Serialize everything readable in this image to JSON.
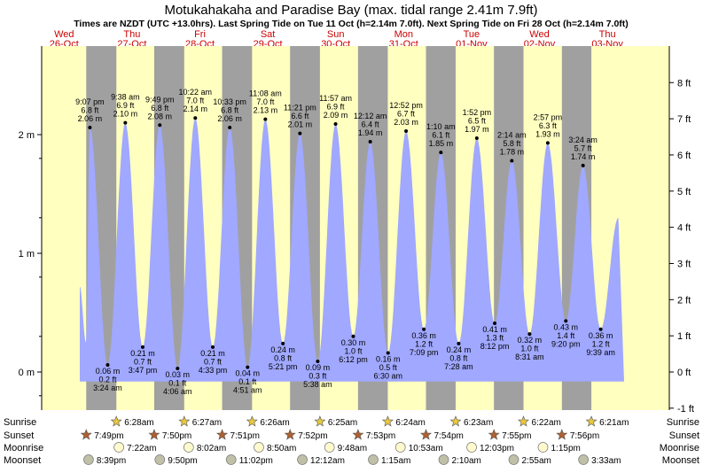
{
  "title": "Motukahakaha and Paradise Bay (max. tidal range 2.41m 7.9ft)",
  "subtitle": "Times are NZDT (UTC +13.0hrs). Last Spring Tide on Tue 11 Oct (h=2.14m 7.0ft). Next Spring Tide on Fri 28 Oct (h=2.14m 7.0ft)",
  "colors": {
    "day": "#ffffc0",
    "night": "#a0a0a0",
    "tide": "#a0a8ff",
    "daylabel": "#cc0000"
  },
  "days": [
    {
      "dow": "Wed",
      "date": "26-Oct"
    },
    {
      "dow": "Thu",
      "date": "27-Oct"
    },
    {
      "dow": "Fri",
      "date": "28-Oct"
    },
    {
      "dow": "Sat",
      "date": "29-Oct"
    },
    {
      "dow": "Sun",
      "date": "30-Oct"
    },
    {
      "dow": "Mon",
      "date": "31-Oct"
    },
    {
      "dow": "Tue",
      "date": "01-Nov"
    },
    {
      "dow": "Wed",
      "date": "02-Nov"
    },
    {
      "dow": "Thu",
      "date": "03-Nov"
    }
  ],
  "chart_data": {
    "type": "area",
    "title": "Motukahakaha and Paradise Bay (max. tidal range 2.41m 7.9ft)",
    "y_left_unit": "m",
    "y_right_unit": "ft",
    "ylim_m": [
      -0.3,
      2.8
    ],
    "left_ticks": [
      "0 m",
      "1 m",
      "2 m"
    ],
    "right_ticks": [
      "-1 ft",
      "0 ft",
      "1 ft",
      "2 ft",
      "3 ft",
      "4 ft",
      "5 ft",
      "6 ft",
      "7 ft",
      "8 ft"
    ],
    "extremes": [
      {
        "type": "high",
        "time": "9:07 pm",
        "ft": "6.8 ft",
        "m": "2.06 m",
        "day": 0,
        "h": 21.117,
        "v": 2.06
      },
      {
        "type": "low",
        "time": "3:24 am",
        "ft": "0.2 ft",
        "m": "0.06 m",
        "day": 1,
        "h": 3.4,
        "v": 0.06
      },
      {
        "type": "high",
        "time": "9:38 am",
        "ft": "6.9 ft",
        "m": "2.10 m",
        "day": 1,
        "h": 9.633,
        "v": 2.1
      },
      {
        "type": "low",
        "time": "3:47 pm",
        "ft": "0.7 ft",
        "m": "0.21 m",
        "day": 1,
        "h": 15.783,
        "v": 0.21
      },
      {
        "type": "high",
        "time": "9:49 pm",
        "ft": "6.8 ft",
        "m": "2.08 m",
        "day": 1,
        "h": 21.817,
        "v": 2.08
      },
      {
        "type": "low",
        "time": "4:06 am",
        "ft": "0.1 ft",
        "m": "0.03 m",
        "day": 2,
        "h": 4.1,
        "v": 0.03
      },
      {
        "type": "high",
        "time": "10:22 am",
        "ft": "7.0 ft",
        "m": "2.14 m",
        "day": 2,
        "h": 10.367,
        "v": 2.14
      },
      {
        "type": "low",
        "time": "4:33 pm",
        "ft": "0.7 ft",
        "m": "0.21 m",
        "day": 2,
        "h": 16.55,
        "v": 0.21
      },
      {
        "type": "high",
        "time": "10:33 pm",
        "ft": "6.8 ft",
        "m": "2.06 m",
        "day": 2,
        "h": 22.55,
        "v": 2.06
      },
      {
        "type": "low",
        "time": "4:51 am",
        "ft": "0.1 ft",
        "m": "0.04 m",
        "day": 3,
        "h": 4.85,
        "v": 0.04
      },
      {
        "type": "high",
        "time": "11:08 am",
        "ft": "7.0 ft",
        "m": "2.13 m",
        "day": 3,
        "h": 11.133,
        "v": 2.13
      },
      {
        "type": "low",
        "time": "5:21 pm",
        "ft": "0.8 ft",
        "m": "0.24 m",
        "day": 3,
        "h": 17.35,
        "v": 0.24
      },
      {
        "type": "high",
        "time": "11:21 pm",
        "ft": "6.6 ft",
        "m": "2.01 m",
        "day": 3,
        "h": 23.35,
        "v": 2.01
      },
      {
        "type": "low",
        "time": "5:38 am",
        "ft": "0.3 ft",
        "m": "0.09 m",
        "day": 4,
        "h": 5.633,
        "v": 0.09
      },
      {
        "type": "high",
        "time": "11:57 am",
        "ft": "6.9 ft",
        "m": "2.09 m",
        "day": 4,
        "h": 11.95,
        "v": 2.09
      },
      {
        "type": "low",
        "time": "6:12 pm",
        "ft": "1.0 ft",
        "m": "0.30 m",
        "day": 4,
        "h": 18.2,
        "v": 0.3
      },
      {
        "type": "high",
        "time": "12:12 am",
        "ft": "6.4 ft",
        "m": "1.94 m",
        "day": 5,
        "h": 0.2,
        "v": 1.94
      },
      {
        "type": "low",
        "time": "6:30 am",
        "ft": "0.5 ft",
        "m": "0.16 m",
        "day": 5,
        "h": 6.5,
        "v": 0.16
      },
      {
        "type": "high",
        "time": "12:52 pm",
        "ft": "6.7 ft",
        "m": "2.03 m",
        "day": 5,
        "h": 12.867,
        "v": 2.03
      },
      {
        "type": "low",
        "time": "7:09 pm",
        "ft": "1.2 ft",
        "m": "0.36 m",
        "day": 5,
        "h": 19.15,
        "v": 0.36
      },
      {
        "type": "high",
        "time": "1:10 am",
        "ft": "6.1 ft",
        "m": "1.85 m",
        "day": 6,
        "h": 1.167,
        "v": 1.85
      },
      {
        "type": "low",
        "time": "7:28 am",
        "ft": "0.8 ft",
        "m": "0.24 m",
        "day": 6,
        "h": 7.467,
        "v": 0.24
      },
      {
        "type": "high",
        "time": "1:52 pm",
        "ft": "6.5 ft",
        "m": "1.97 m",
        "day": 6,
        "h": 13.867,
        "v": 1.97
      },
      {
        "type": "low",
        "time": "8:12 pm",
        "ft": "1.3 ft",
        "m": "0.41 m",
        "day": 6,
        "h": 20.2,
        "v": 0.41
      },
      {
        "type": "high",
        "time": "2:14 am",
        "ft": "5.8 ft",
        "m": "1.78 m",
        "day": 7,
        "h": 2.233,
        "v": 1.78
      },
      {
        "type": "low",
        "time": "8:31 am",
        "ft": "1.0 ft",
        "m": "0.32 m",
        "day": 7,
        "h": 8.517,
        "v": 0.32
      },
      {
        "type": "high",
        "time": "2:57 pm",
        "ft": "6.3 ft",
        "m": "1.93 m",
        "day": 7,
        "h": 14.95,
        "v": 1.93
      },
      {
        "type": "low",
        "time": "9:20 pm",
        "ft": "1.4 ft",
        "m": "0.43 m",
        "day": 7,
        "h": 21.333,
        "v": 0.43
      },
      {
        "type": "high",
        "time": "3:24 am",
        "ft": "5.7 ft",
        "m": "1.74 m",
        "day": 8,
        "h": 3.4,
        "v": 1.74
      },
      {
        "type": "low",
        "time": "9:39 am",
        "ft": "1.2 ft",
        "m": "0.36 m",
        "day": 8,
        "h": 9.65,
        "v": 0.36
      }
    ],
    "sun": [
      {
        "day": 0,
        "set": "7:49pm",
        "set_h": 19.817
      },
      {
        "day": 1,
        "rise": "6:28am",
        "rise_h": 6.467,
        "set": "7:50pm",
        "set_h": 19.833
      },
      {
        "day": 2,
        "rise": "6:27am",
        "rise_h": 6.45,
        "set": "7:51pm",
        "set_h": 19.85
      },
      {
        "day": 3,
        "rise": "6:26am",
        "rise_h": 6.433,
        "set": "7:52pm",
        "set_h": 19.867
      },
      {
        "day": 4,
        "rise": "6:25am",
        "rise_h": 6.417,
        "set": "7:53pm",
        "set_h": 19.883
      },
      {
        "day": 5,
        "rise": "6:24am",
        "rise_h": 6.4,
        "set": "7:54pm",
        "set_h": 19.9
      },
      {
        "day": 6,
        "rise": "6:23am",
        "rise_h": 6.383,
        "set": "7:55pm",
        "set_h": 19.917
      },
      {
        "day": 7,
        "rise": "6:22am",
        "rise_h": 6.367,
        "set": "7:56pm",
        "set_h": 19.933
      },
      {
        "day": 8,
        "rise": "6:21am",
        "rise_h": 6.35
      }
    ],
    "moonrise": [
      {
        "day": 1,
        "time": "7:22am",
        "h": 7.367
      },
      {
        "day": 2,
        "time": "8:02am",
        "h": 8.033
      },
      {
        "day": 3,
        "time": "8:50am",
        "h": 8.833
      },
      {
        "day": 4,
        "time": "9:48am",
        "h": 9.8
      },
      {
        "day": 5,
        "time": "10:53am",
        "h": 10.883
      },
      {
        "day": 6,
        "time": "12:03pm",
        "h": 12.05
      },
      {
        "day": 7,
        "time": "1:15pm",
        "h": 13.25
      }
    ],
    "moonset": [
      {
        "day": 0,
        "time": "8:39pm",
        "h": 20.65
      },
      {
        "day": 1,
        "time": "9:50pm",
        "h": 21.833
      },
      {
        "day": 2,
        "time": "11:02pm",
        "h": 23.033
      },
      {
        "day": 4,
        "time": "12:12am",
        "h": 0.2
      },
      {
        "day": 5,
        "time": "1:15am",
        "h": 1.25
      },
      {
        "day": 6,
        "time": "2:10am",
        "h": 2.167
      },
      {
        "day": 7,
        "time": "2:55am",
        "h": 2.917
      },
      {
        "day": 8,
        "time": "3:33am",
        "h": 3.55
      }
    ]
  },
  "rows": {
    "sunrise": "Sunrise",
    "sunset": "Sunset",
    "moonrise": "Moonrise",
    "moonset": "Moonset"
  }
}
